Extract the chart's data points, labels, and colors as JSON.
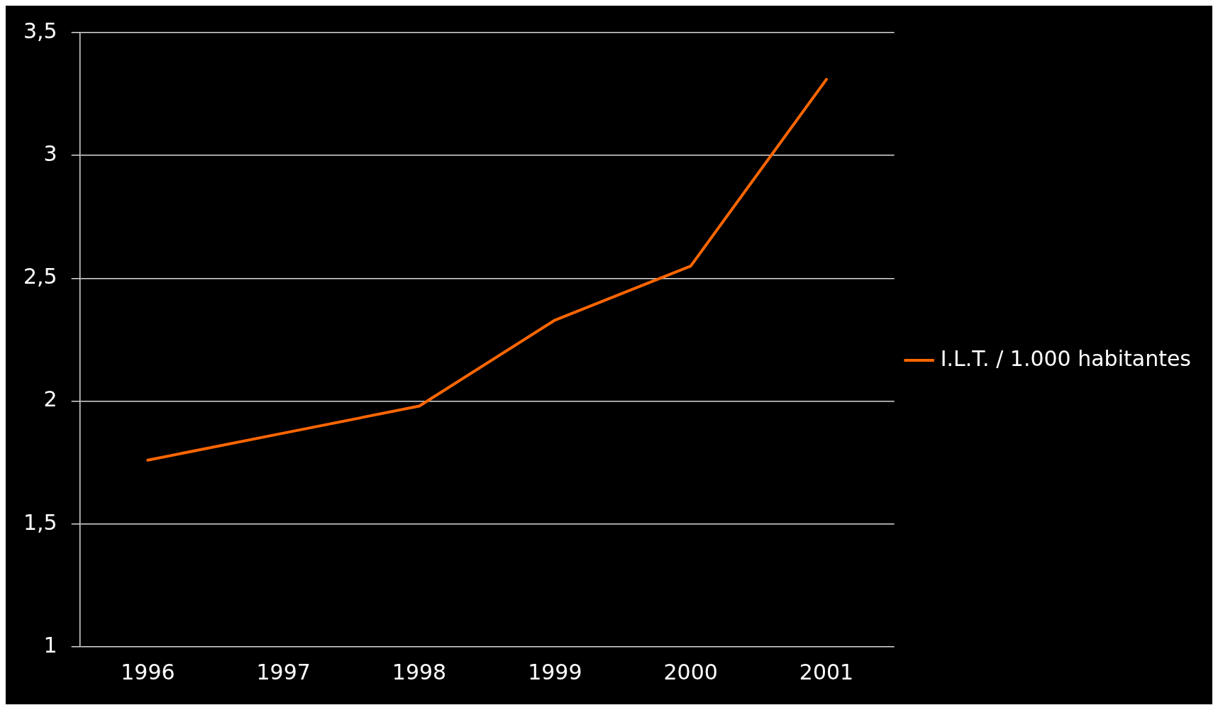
{
  "chart_data": {
    "type": "line",
    "categories": [
      "1996",
      "1997",
      "1998",
      "1999",
      "2000",
      "2001"
    ],
    "series": [
      {
        "name": "I.L.T. / 1.000 habitantes",
        "color": "#ff6600",
        "values": [
          1.76,
          1.87,
          1.98,
          2.33,
          2.55,
          3.31
        ]
      }
    ],
    "ylim": [
      1,
      3.5
    ],
    "yticks": [
      1,
      {
        "value": 1.5,
        "label": "1,5"
      },
      2,
      {
        "value": 2.5,
        "label": "2,5"
      },
      3,
      {
        "value": 3.5,
        "label": "3,5"
      }
    ],
    "grid": "y",
    "legend": "right",
    "marker": "none",
    "line_style": "solid"
  }
}
